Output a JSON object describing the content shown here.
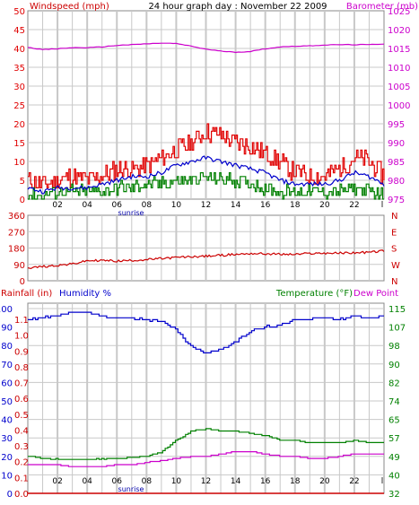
{
  "header": {
    "left_label": "Windspeed (mph)",
    "title": "24 hour graph day : November 22 2009",
    "right_label": "Barometer (mb)"
  },
  "bottom_header": {
    "rain_label": "Rainfall (in)",
    "humidity_label": "Humidity %",
    "temperature_label": "Temperature (°F)",
    "dewpoint_label": "Dew Point"
  },
  "colors": {
    "wind_max": "#e00000",
    "wind_avg": "#0000cc",
    "wind_min": "#008000",
    "barometer": "#cc00cc",
    "direction": "#cc0000",
    "humidity": "#0000cc",
    "temperature": "#008000",
    "dewpoint": "#cc00cc",
    "rain": "#cc0000",
    "grid": "#c8c8c8"
  },
  "chart_data": [
    {
      "type": "line",
      "title": "24 hour graph day : November 22 2009",
      "ylabel": "Windspeed (mph)",
      "y2label": "Barometer (mb)",
      "x_ticks": [
        "02",
        "04",
        "06",
        "08",
        "10",
        "12",
        "14",
        "16",
        "18",
        "20",
        "22",
        "l"
      ],
      "annotation": "sunrise",
      "ylim": [
        0,
        50
      ],
      "y_ticks": [
        0,
        5,
        10,
        15,
        20,
        25,
        30,
        35,
        40,
        45,
        50
      ],
      "y2lim": [
        975,
        1025
      ],
      "y2_ticks": [
        975,
        980,
        985,
        990,
        995,
        1000,
        1005,
        1010,
        1015,
        1020,
        1025
      ],
      "hours": [
        0,
        1,
        2,
        3,
        4,
        5,
        6,
        7,
        8,
        9,
        10,
        11,
        12,
        13,
        14,
        15,
        16,
        17,
        18,
        19,
        20,
        21,
        22,
        23,
        24
      ],
      "series": [
        {
          "name": "Windspeed (mph)",
          "values": [
            5,
            4,
            5,
            6,
            5,
            6,
            8,
            8,
            9,
            11,
            13,
            15,
            18,
            17,
            15,
            14,
            12,
            10,
            7,
            6,
            6,
            8,
            11,
            10,
            6
          ]
        },
        {
          "name": "",
          "values": [
            3,
            2,
            3,
            3,
            3,
            4,
            5,
            6,
            6,
            7,
            9,
            10,
            11,
            10,
            9,
            8,
            7,
            5,
            4,
            4,
            4,
            5,
            7,
            6,
            4
          ]
        },
        {
          "name": "",
          "values": [
            1,
            1,
            2,
            2,
            2,
            2,
            3,
            3,
            4,
            4,
            5,
            5,
            6,
            5,
            5,
            4,
            3,
            2,
            2,
            2,
            2,
            2,
            3,
            2,
            1
          ]
        },
        {
          "name": "Barometer (mb)",
          "values": [
            1015.3,
            1014.7,
            1014.9,
            1015.2,
            1015.2,
            1015.4,
            1015.8,
            1016.0,
            1016.2,
            1016.4,
            1016.3,
            1015.6,
            1014.8,
            1014.3,
            1014.0,
            1014.2,
            1014.9,
            1015.4,
            1015.6,
            1015.7,
            1015.9,
            1016.0,
            1016.0,
            1016.0,
            1016.2
          ]
        }
      ]
    },
    {
      "type": "line",
      "ylim": [
        0,
        360
      ],
      "y_ticks": [
        0,
        90,
        180,
        270,
        360
      ],
      "y2_ticks": [
        "N",
        "W",
        "S",
        "E",
        "N"
      ],
      "hours": [
        0,
        1,
        2,
        3,
        4,
        5,
        6,
        7,
        8,
        9,
        10,
        11,
        12,
        13,
        14,
        15,
        16,
        17,
        18,
        19,
        20,
        21,
        22,
        23,
        24
      ],
      "series": [
        {
          "name": "",
          "values": [
            70,
            78,
            85,
            92,
            110,
            112,
            108,
            112,
            116,
            122,
            128,
            132,
            135,
            140,
            145,
            150,
            148,
            146,
            145,
            150,
            152,
            152,
            154,
            156,
            165
          ]
        }
      ]
    },
    {
      "type": "line",
      "x_ticks": [
        "02",
        "04",
        "06",
        "08",
        "10",
        "12",
        "14",
        "16",
        "18",
        "20",
        "22",
        "l"
      ],
      "annotation": "sunrise",
      "y_ticks": [
        0,
        10,
        20,
        30,
        40,
        50,
        60,
        70,
        80,
        90,
        100
      ],
      "rain_ticks": [
        "0.0",
        "0.1",
        "0.2",
        "0.3",
        "0.4",
        "0.5",
        "0.6",
        "0.7",
        "0.8",
        "0.9",
        "1.0",
        "1.1"
      ],
      "y2_ticks": [
        32,
        40,
        49,
        57,
        65,
        74,
        82,
        90,
        98,
        107,
        115
      ],
      "hours": [
        0,
        1,
        2,
        3,
        4,
        5,
        6,
        7,
        8,
        9,
        10,
        11,
        12,
        13,
        14,
        15,
        16,
        17,
        18,
        19,
        20,
        21,
        22,
        23,
        24
      ],
      "series": [
        {
          "name": "Humidity %",
          "values": [
            94,
            95,
            96,
            98,
            98,
            96,
            95,
            95,
            94,
            93,
            88,
            80,
            76,
            78,
            82,
            88,
            90,
            91,
            94,
            94,
            95,
            94,
            96,
            95,
            96
          ]
        },
        {
          "name": "Temperature (°F)",
          "values": [
            49,
            48,
            47.6,
            47.5,
            47.6,
            47.7,
            48,
            48.5,
            49,
            51,
            56,
            60,
            61,
            60,
            60,
            59,
            58,
            56,
            56,
            55,
            55,
            55,
            56,
            55,
            55
          ]
        },
        {
          "name": "Dew Point",
          "values": [
            45,
            45,
            45,
            44,
            44,
            44,
            45,
            45,
            46,
            47,
            48,
            49,
            49,
            50,
            51,
            51,
            50,
            49,
            49,
            48,
            48,
            49,
            50,
            50,
            50
          ]
        },
        {
          "name": "Rainfall (in)",
          "values": [
            0,
            0,
            0,
            0,
            0,
            0,
            0,
            0,
            0,
            0,
            0,
            0,
            0,
            0,
            0,
            0,
            0,
            0,
            0,
            0,
            0,
            0,
            0,
            0,
            0
          ]
        }
      ]
    }
  ]
}
